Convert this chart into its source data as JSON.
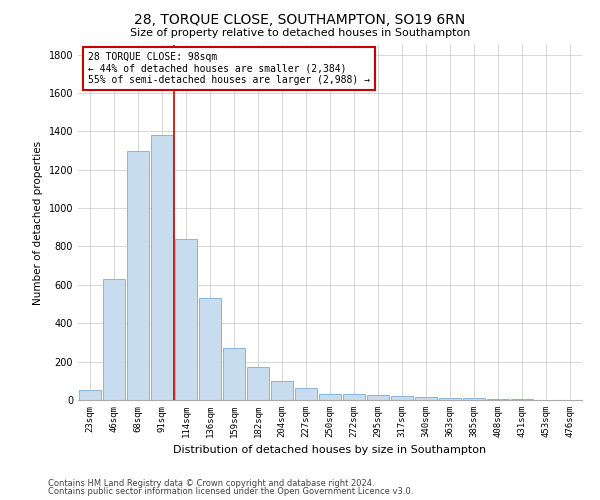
{
  "title": "28, TORQUE CLOSE, SOUTHAMPTON, SO19 6RN",
  "subtitle": "Size of property relative to detached houses in Southampton",
  "xlabel": "Distribution of detached houses by size in Southampton",
  "ylabel": "Number of detached properties",
  "categories": [
    "23sqm",
    "46sqm",
    "68sqm",
    "91sqm",
    "114sqm",
    "136sqm",
    "159sqm",
    "182sqm",
    "204sqm",
    "227sqm",
    "250sqm",
    "272sqm",
    "295sqm",
    "317sqm",
    "340sqm",
    "363sqm",
    "385sqm",
    "408sqm",
    "431sqm",
    "453sqm",
    "476sqm"
  ],
  "values": [
    50,
    630,
    1300,
    1380,
    840,
    530,
    270,
    170,
    100,
    60,
    30,
    30,
    25,
    20,
    15,
    10,
    8,
    5,
    3,
    2,
    1
  ],
  "bar_color": "#c8dcf0",
  "bar_edgecolor": "#8ab4d8",
  "annotation_text": "28 TORQUE CLOSE: 98sqm\n← 44% of detached houses are smaller (2,384)\n55% of semi-detached houses are larger (2,988) →",
  "annotation_box_color": "white",
  "annotation_box_edgecolor": "#cc0000",
  "red_line_color": "#cc0000",
  "footer1": "Contains HM Land Registry data © Crown copyright and database right 2024.",
  "footer2": "Contains public sector information licensed under the Open Government Licence v3.0.",
  "ylim": [
    0,
    1850
  ],
  "yticks": [
    0,
    200,
    400,
    600,
    800,
    1000,
    1200,
    1400,
    1600,
    1800
  ],
  "background_color": "#ffffff",
  "grid_color": "#d0d0d0"
}
